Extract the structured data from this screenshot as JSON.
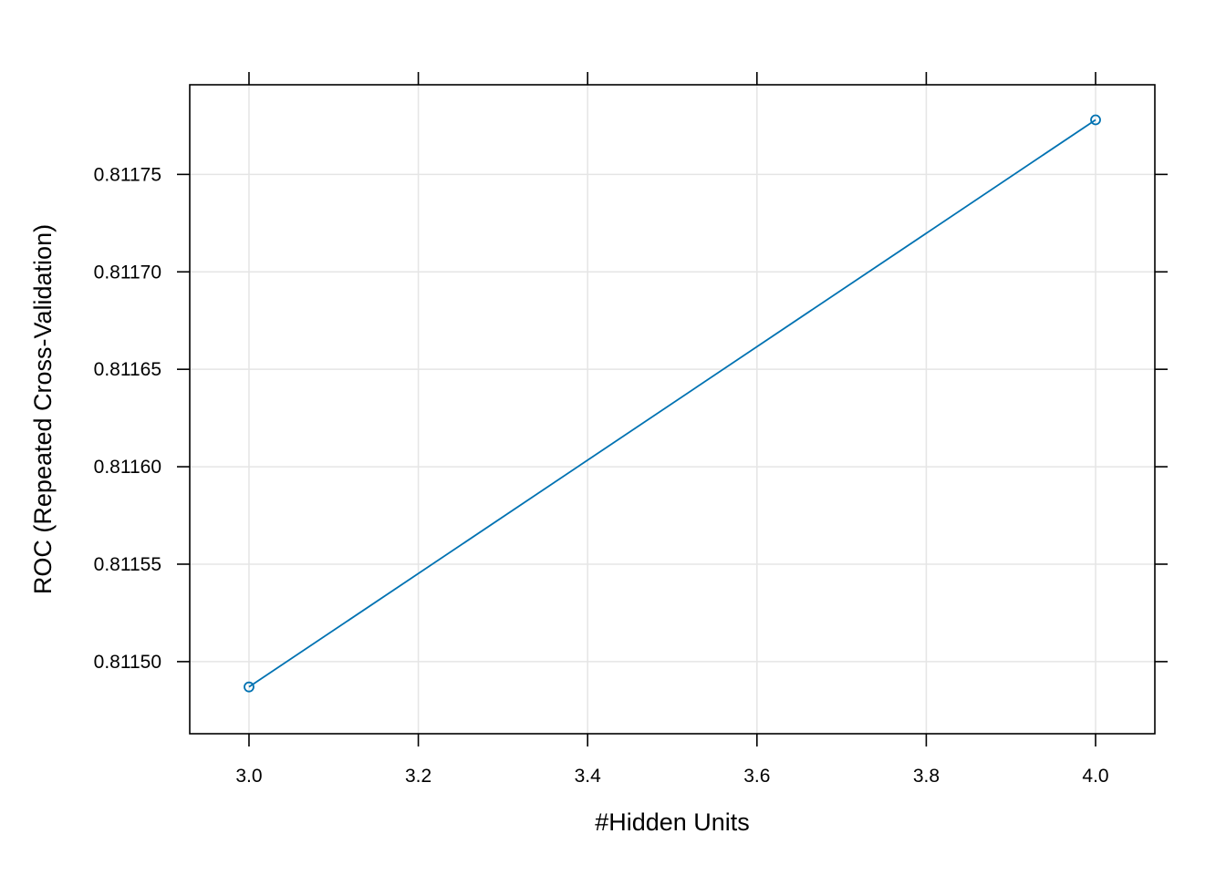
{
  "chart_data": {
    "type": "line",
    "title": "",
    "xlabel": "#Hidden Units",
    "ylabel": "ROC (Repeated Cross-Validation)",
    "xlim": [
      2.93,
      4.07
    ],
    "ylim": [
      0.811463,
      0.811796
    ],
    "xticks": [
      "3.0",
      "3.2",
      "3.4",
      "3.6",
      "3.8",
      "4.0"
    ],
    "yticks": [
      "0.81150",
      "0.81155",
      "0.81160",
      "0.81165",
      "0.81170",
      "0.81175"
    ],
    "grid": true,
    "series": [
      {
        "color": "#0072B2",
        "marker": "open-circle",
        "x": [
          3,
          4
        ],
        "y": [
          0.811487,
          0.811778
        ]
      }
    ]
  }
}
